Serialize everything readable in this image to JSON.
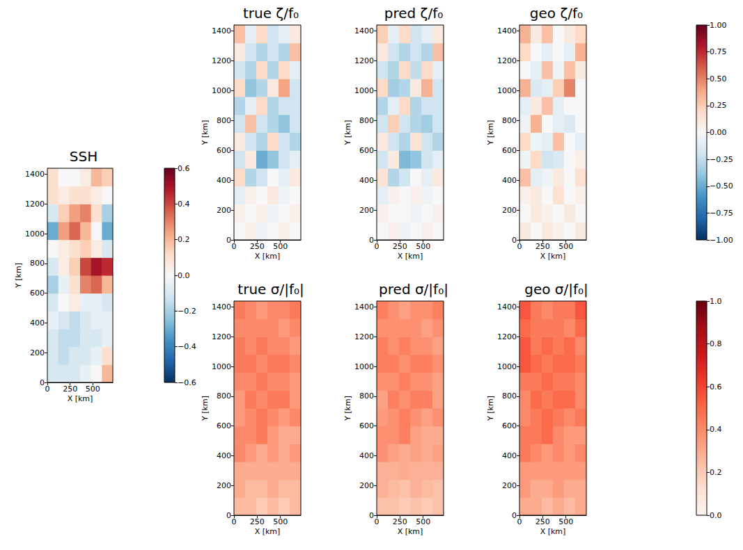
{
  "chart_data": [
    {
      "type": "heatmap",
      "title": "SSH",
      "x_label": "X [km]",
      "y_label": "Y [km]",
      "xlim": [
        0,
        720
      ],
      "ylim": [
        0,
        1440
      ],
      "xticks": [
        0,
        250,
        500
      ],
      "yticks": [
        0,
        200,
        400,
        600,
        800,
        1000,
        1200,
        1400
      ],
      "color": "RdBu_r",
      "vlim": [
        -0.6,
        0.6
      ],
      "colorbar_ticks": [
        {
          "value": -0.6,
          "label": "−0.6"
        },
        {
          "value": -0.4,
          "label": "−0.4"
        },
        {
          "value": -0.2,
          "label": "−0.2"
        },
        {
          "value": 0,
          "label": "0.0"
        },
        {
          "value": 0.2,
          "label": "0.2"
        },
        {
          "value": 0.4,
          "label": "0.4"
        },
        {
          "value": 0.6,
          "label": "0.6"
        }
      ],
      "x_edges": [
        0,
        120,
        240,
        360,
        480,
        600,
        720
      ],
      "y_edges": [
        0,
        120,
        240,
        360,
        480,
        600,
        720,
        840,
        960,
        1080,
        1200,
        1320,
        1440
      ],
      "values": [
        [
          -0.1,
          -0.1,
          -0.1,
          -0.05,
          0.0,
          0.2
        ],
        [
          -0.1,
          -0.15,
          -0.1,
          -0.1,
          -0.05,
          0.1
        ],
        [
          -0.1,
          -0.15,
          -0.15,
          -0.1,
          -0.1,
          -0.05
        ],
        [
          -0.05,
          -0.1,
          -0.15,
          -0.1,
          -0.05,
          -0.05
        ],
        [
          -0.1,
          0.0,
          0.05,
          -0.05,
          -0.05,
          -0.1
        ],
        [
          -0.2,
          -0.05,
          0.1,
          0.3,
          0.35,
          0.2
        ],
        [
          -0.1,
          0.05,
          0.15,
          0.4,
          0.5,
          0.45
        ],
        [
          0.0,
          0.05,
          0.1,
          0.15,
          0.05,
          -0.1
        ],
        [
          -0.3,
          0.25,
          0.35,
          0.2,
          0.0,
          -0.3
        ],
        [
          -0.1,
          0.15,
          0.25,
          0.3,
          0.1,
          -0.2
        ],
        [
          0.1,
          0.05,
          0.1,
          0.1,
          0.05,
          0.0
        ],
        [
          0.1,
          0.0,
          0.0,
          0.05,
          0.2,
          0.15
        ]
      ]
    },
    {
      "type": "heatmap",
      "title": "true ζ/f₀",
      "x_label": "X [km]",
      "y_label": "Y [km]",
      "xlim": [
        0,
        720
      ],
      "ylim": [
        0,
        1440
      ],
      "xticks": [
        0,
        250,
        500
      ],
      "yticks": [
        0,
        200,
        400,
        600,
        800,
        1000,
        1200,
        1400
      ],
      "color": "RdBu_r",
      "vlim": [
        -1,
        1
      ],
      "x_edges": [
        0,
        120,
        240,
        360,
        480,
        600,
        720
      ],
      "y_edges": [
        0,
        120,
        240,
        360,
        480,
        600,
        720,
        840,
        960,
        1080,
        1200,
        1320,
        1440
      ],
      "values": [
        [
          0.0,
          0.05,
          -0.05,
          0.0,
          0.05,
          0.0
        ],
        [
          0.05,
          0.0,
          0.05,
          -0.05,
          0.0,
          0.05
        ],
        [
          -0.1,
          0.05,
          0.0,
          0.1,
          -0.05,
          0.0
        ],
        [
          0.2,
          -0.3,
          -0.2,
          0.0,
          -0.1,
          0.1
        ],
        [
          -0.2,
          0.1,
          -0.5,
          -0.4,
          -0.2,
          -0.1
        ],
        [
          0.1,
          -0.2,
          -0.3,
          0.2,
          -0.2,
          -0.3
        ],
        [
          -0.2,
          0.3,
          -0.2,
          -0.3,
          -0.4,
          -0.2
        ],
        [
          -0.3,
          -0.1,
          0.2,
          -0.3,
          -0.2,
          -0.2
        ],
        [
          0.2,
          -0.4,
          -0.3,
          0.1,
          0.4,
          -0.2
        ],
        [
          -0.2,
          -0.3,
          0.2,
          -0.3,
          0.2,
          -0.1
        ],
        [
          0.1,
          -0.2,
          -0.3,
          -0.2,
          -0.3,
          0.3
        ],
        [
          0.3,
          -0.1,
          0.2,
          -0.2,
          -0.1,
          0.1
        ]
      ]
    },
    {
      "type": "heatmap",
      "title": "pred ζ/f₀",
      "x_label": "X [km]",
      "y_label": "Y [km]",
      "xlim": [
        0,
        720
      ],
      "ylim": [
        0,
        1440
      ],
      "xticks": [
        0,
        250,
        500
      ],
      "yticks": [
        0,
        200,
        400,
        600,
        800,
        1000,
        1200,
        1400
      ],
      "color": "RdBu_r",
      "vlim": [
        -1,
        1
      ],
      "x_edges": [
        0,
        120,
        240,
        360,
        480,
        600,
        720
      ],
      "y_edges": [
        0,
        120,
        240,
        360,
        480,
        600,
        720,
        840,
        960,
        1080,
        1200,
        1320,
        1440
      ],
      "values": [
        [
          0.0,
          0.05,
          -0.05,
          0.0,
          0.05,
          0.0
        ],
        [
          0.05,
          0.0,
          0.0,
          -0.05,
          0.0,
          0.05
        ],
        [
          -0.1,
          0.05,
          0.0,
          0.05,
          -0.05,
          0.0
        ],
        [
          0.15,
          -0.3,
          -0.2,
          0.0,
          -0.1,
          0.1
        ],
        [
          -0.2,
          0.1,
          -0.45,
          -0.4,
          -0.2,
          -0.1
        ],
        [
          0.1,
          -0.2,
          -0.3,
          0.15,
          -0.2,
          -0.3
        ],
        [
          -0.2,
          0.25,
          -0.2,
          -0.3,
          -0.35,
          -0.2
        ],
        [
          -0.3,
          -0.1,
          0.2,
          -0.3,
          -0.2,
          -0.2
        ],
        [
          0.2,
          -0.35,
          -0.3,
          0.1,
          0.35,
          -0.2
        ],
        [
          -0.2,
          -0.3,
          0.2,
          -0.25,
          0.2,
          -0.1
        ],
        [
          0.1,
          -0.2,
          -0.3,
          -0.2,
          -0.3,
          0.3
        ],
        [
          0.25,
          -0.1,
          0.2,
          -0.2,
          -0.1,
          0.1
        ]
      ]
    },
    {
      "type": "heatmap",
      "title": "geo ζ/f₀",
      "x_label": "X [km]",
      "y_label": "Y [km]",
      "xlim": [
        0,
        720
      ],
      "ylim": [
        0,
        1440
      ],
      "xticks": [
        0,
        250,
        500
      ],
      "yticks": [
        0,
        200,
        400,
        600,
        800,
        1000,
        1200,
        1400
      ],
      "color": "RdBu_r",
      "vlim": [
        -1,
        1
      ],
      "colorbar_ticks": [
        {
          "value": -1,
          "label": "−1.00"
        },
        {
          "value": -0.75,
          "label": "−0.75"
        },
        {
          "value": -0.5,
          "label": "−0.50"
        },
        {
          "value": -0.25,
          "label": "−0.25"
        },
        {
          "value": 0,
          "label": "0.00"
        },
        {
          "value": 0.25,
          "label": "0.25"
        },
        {
          "value": 0.5,
          "label": "0.50"
        },
        {
          "value": 0.75,
          "label": "0.75"
        },
        {
          "value": 1,
          "label": "1.00"
        }
      ],
      "x_edges": [
        0,
        120,
        240,
        360,
        480,
        600,
        720
      ],
      "y_edges": [
        0,
        120,
        240,
        360,
        480,
        600,
        720,
        840,
        960,
        1080,
        1200,
        1320,
        1440
      ],
      "values": [
        [
          0.1,
          0.0,
          0.1,
          0.05,
          0.0,
          0.1
        ],
        [
          0.0,
          0.1,
          0.05,
          0.0,
          0.1,
          0.0
        ],
        [
          0.05,
          0.1,
          0.0,
          0.15,
          0.0,
          0.05
        ],
        [
          0.3,
          -0.1,
          -0.05,
          0.1,
          0.0,
          0.15
        ],
        [
          -0.05,
          0.2,
          -0.2,
          -0.15,
          0.0,
          0.05
        ],
        [
          0.2,
          -0.05,
          -0.1,
          0.3,
          0.0,
          -0.1
        ],
        [
          -0.05,
          0.35,
          0.0,
          -0.1,
          -0.15,
          0.0
        ],
        [
          -0.1,
          0.1,
          0.3,
          -0.1,
          0.0,
          0.0
        ],
        [
          0.35,
          -0.15,
          -0.1,
          0.25,
          0.5,
          0.0
        ],
        [
          0.0,
          -0.1,
          0.3,
          -0.05,
          0.3,
          0.1
        ],
        [
          0.2,
          0.0,
          -0.1,
          0.0,
          -0.1,
          0.35
        ],
        [
          0.35,
          0.1,
          0.3,
          0.0,
          0.1,
          0.2
        ]
      ]
    },
    {
      "type": "heatmap",
      "title": "true σ/|f₀|",
      "x_label": "X [km]",
      "y_label": "Y [km]",
      "xlim": [
        0,
        720
      ],
      "ylim": [
        0,
        1440
      ],
      "xticks": [
        0,
        250,
        500
      ],
      "yticks": [
        0,
        200,
        400,
        600,
        800,
        1000,
        1200,
        1400
      ],
      "color": "Reds",
      "vlim": [
        0,
        1
      ],
      "x_edges": [
        0,
        120,
        240,
        360,
        480,
        600,
        720
      ],
      "y_edges": [
        0,
        120,
        240,
        360,
        480,
        600,
        720,
        840,
        960,
        1080,
        1200,
        1320,
        1440
      ],
      "values": [
        [
          0.25,
          0.25,
          0.2,
          0.25,
          0.2,
          0.25
        ],
        [
          0.3,
          0.25,
          0.25,
          0.3,
          0.25,
          0.25
        ],
        [
          0.3,
          0.3,
          0.3,
          0.3,
          0.3,
          0.3
        ],
        [
          0.4,
          0.35,
          0.3,
          0.35,
          0.3,
          0.35
        ],
        [
          0.4,
          0.4,
          0.45,
          0.35,
          0.3,
          0.3
        ],
        [
          0.35,
          0.4,
          0.45,
          0.4,
          0.35,
          0.4
        ],
        [
          0.35,
          0.45,
          0.4,
          0.45,
          0.45,
          0.35
        ],
        [
          0.4,
          0.4,
          0.45,
          0.4,
          0.4,
          0.35
        ],
        [
          0.45,
          0.45,
          0.4,
          0.45,
          0.45,
          0.4
        ],
        [
          0.45,
          0.4,
          0.45,
          0.4,
          0.4,
          0.35
        ],
        [
          0.4,
          0.4,
          0.4,
          0.4,
          0.35,
          0.4
        ],
        [
          0.45,
          0.4,
          0.35,
          0.4,
          0.4,
          0.45
        ]
      ]
    },
    {
      "type": "heatmap",
      "title": "pred σ/|f₀|",
      "x_label": "X [km]",
      "y_label": "Y [km]",
      "xlim": [
        0,
        720
      ],
      "ylim": [
        0,
        1440
      ],
      "xticks": [
        0,
        250,
        500
      ],
      "yticks": [
        0,
        200,
        400,
        600,
        800,
        1000,
        1200,
        1400
      ],
      "color": "Reds",
      "vlim": [
        0,
        1
      ],
      "x_edges": [
        0,
        120,
        240,
        360,
        480,
        600,
        720
      ],
      "y_edges": [
        0,
        120,
        240,
        360,
        480,
        600,
        720,
        840,
        960,
        1080,
        1200,
        1320,
        1440
      ],
      "values": [
        [
          0.23,
          0.23,
          0.2,
          0.23,
          0.2,
          0.23
        ],
        [
          0.28,
          0.25,
          0.23,
          0.28,
          0.25,
          0.23
        ],
        [
          0.28,
          0.28,
          0.3,
          0.28,
          0.28,
          0.28
        ],
        [
          0.38,
          0.33,
          0.3,
          0.33,
          0.3,
          0.33
        ],
        [
          0.38,
          0.38,
          0.43,
          0.33,
          0.3,
          0.3
        ],
        [
          0.35,
          0.38,
          0.43,
          0.38,
          0.33,
          0.38
        ],
        [
          0.33,
          0.43,
          0.38,
          0.43,
          0.43,
          0.33
        ],
        [
          0.38,
          0.38,
          0.43,
          0.38,
          0.38,
          0.33
        ],
        [
          0.43,
          0.43,
          0.38,
          0.43,
          0.43,
          0.38
        ],
        [
          0.43,
          0.38,
          0.43,
          0.38,
          0.38,
          0.33
        ],
        [
          0.38,
          0.38,
          0.38,
          0.38,
          0.33,
          0.38
        ],
        [
          0.43,
          0.38,
          0.33,
          0.38,
          0.38,
          0.43
        ]
      ]
    },
    {
      "type": "heatmap",
      "title": "geo σ/|f₀|",
      "x_label": "X [km]",
      "y_label": "Y [km]",
      "xlim": [
        0,
        720
      ],
      "ylim": [
        0,
        1440
      ],
      "xticks": [
        0,
        250,
        500
      ],
      "yticks": [
        0,
        200,
        400,
        600,
        800,
        1000,
        1200,
        1400
      ],
      "color": "Reds",
      "vlim": [
        0,
        1
      ],
      "colorbar_ticks": [
        {
          "value": 0,
          "label": "0.0"
        },
        {
          "value": 0.2,
          "label": "0.2"
        },
        {
          "value": 0.4,
          "label": "0.4"
        },
        {
          "value": 0.6,
          "label": "0.6"
        },
        {
          "value": 0.8,
          "label": "0.8"
        },
        {
          "value": 1,
          "label": "1.0"
        }
      ],
      "x_edges": [
        0,
        120,
        240,
        360,
        480,
        600,
        720
      ],
      "y_edges": [
        0,
        120,
        240,
        360,
        480,
        600,
        720,
        840,
        960,
        1080,
        1200,
        1320,
        1440
      ],
      "values": [
        [
          0.3,
          0.3,
          0.25,
          0.3,
          0.25,
          0.3
        ],
        [
          0.35,
          0.3,
          0.3,
          0.35,
          0.3,
          0.3
        ],
        [
          0.35,
          0.35,
          0.35,
          0.35,
          0.35,
          0.35
        ],
        [
          0.45,
          0.4,
          0.35,
          0.4,
          0.35,
          0.4
        ],
        [
          0.45,
          0.45,
          0.5,
          0.4,
          0.35,
          0.35
        ],
        [
          0.4,
          0.45,
          0.5,
          0.45,
          0.4,
          0.45
        ],
        [
          0.4,
          0.5,
          0.45,
          0.5,
          0.5,
          0.4
        ],
        [
          0.45,
          0.45,
          0.5,
          0.45,
          0.45,
          0.4
        ],
        [
          0.55,
          0.5,
          0.45,
          0.5,
          0.5,
          0.45
        ],
        [
          0.55,
          0.45,
          0.5,
          0.45,
          0.5,
          0.4
        ],
        [
          0.5,
          0.45,
          0.45,
          0.45,
          0.4,
          0.5
        ],
        [
          0.55,
          0.45,
          0.4,
          0.45,
          0.45,
          0.55
        ]
      ]
    }
  ]
}
